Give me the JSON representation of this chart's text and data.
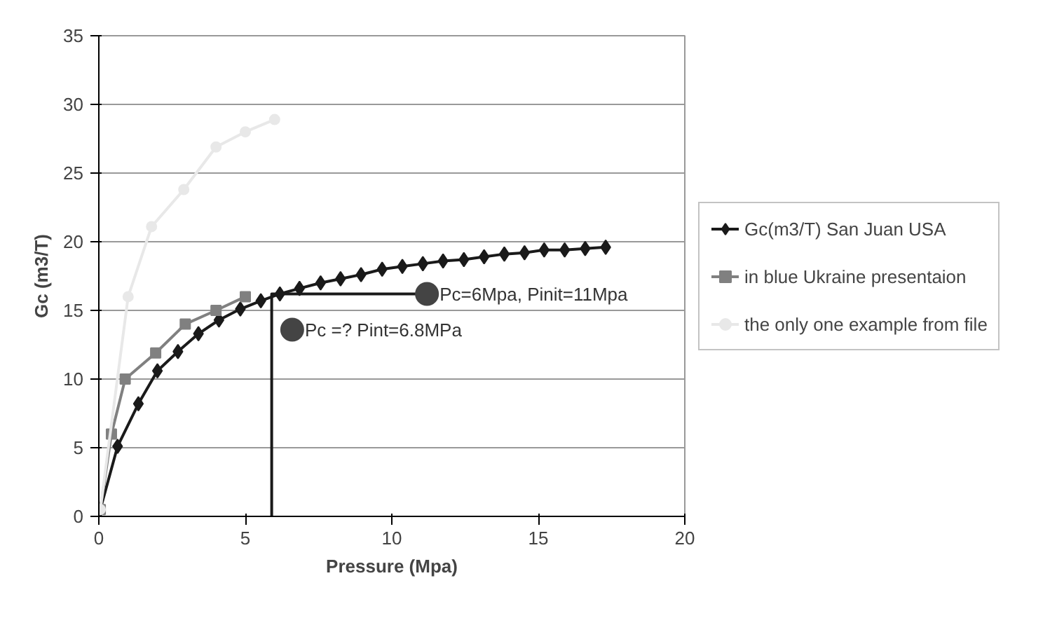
{
  "chart_data": {
    "type": "line",
    "xlabel": "Pressure (Mpa)",
    "ylabel": "Gc (m3/T)",
    "xlim": [
      0,
      20
    ],
    "xticks": [
      0,
      5,
      10,
      15,
      20
    ],
    "ylim": [
      0,
      35
    ],
    "yticks": [
      0,
      5,
      10,
      15,
      20,
      25,
      30,
      35
    ],
    "grid": "y",
    "legend": "right",
    "series": [
      {
        "name": "Gc(m3/T) San Juan USA",
        "color": "#1a1a1a",
        "marker": "diamond",
        "x": [
          0.05,
          0.64,
          1.35,
          2.0,
          2.7,
          3.4,
          4.1,
          4.83,
          5.53,
          6.18,
          6.85,
          7.57,
          8.25,
          8.95,
          9.67,
          10.36,
          11.06,
          11.75,
          12.46,
          13.15,
          13.84,
          14.53,
          15.2,
          15.9,
          16.6,
          17.3
        ],
        "values": [
          0.5,
          5.1,
          8.2,
          10.6,
          12.0,
          13.3,
          14.3,
          15.1,
          15.7,
          16.2,
          16.6,
          17.0,
          17.3,
          17.6,
          18.0,
          18.2,
          18.4,
          18.6,
          18.7,
          18.9,
          19.1,
          19.2,
          19.4,
          19.4,
          19.5,
          19.6
        ]
      },
      {
        "name": "in blue Ukraine presentaion",
        "color": "#808080",
        "marker": "square",
        "x": [
          0.05,
          0.43,
          0.9,
          1.94,
          2.95,
          4.0,
          5.0
        ],
        "values": [
          0.5,
          6.0,
          10.0,
          11.9,
          14.0,
          15.0,
          16.0
        ]
      },
      {
        "name": "the only one example from file",
        "color": "#e8e8e8",
        "marker": "circle",
        "x": [
          0.05,
          1.0,
          1.8,
          2.9,
          4.0,
          5.0,
          6.0
        ],
        "values": [
          0.5,
          16.0,
          21.1,
          23.8,
          26.9,
          28.0,
          28.9
        ]
      },
      {
        "color": "#1a1a1a",
        "marker": "none",
        "x": [
          5.9,
          5.9,
          11.2
        ],
        "values": [
          0,
          16.2,
          16.2
        ]
      },
      {
        "type": "scatter",
        "color": "#444444",
        "marker": "circle",
        "x": [
          11.2,
          6.6
        ],
        "values": [
          16.2,
          13.6
        ]
      }
    ],
    "annotations": [
      {
        "text": "Pc=6Mpa, Pinit=11Mpa",
        "x": 11.2,
        "y": 16.2
      },
      {
        "text": "Pc =? Pint=6.8MPa",
        "x": 6.6,
        "y": 13.6
      }
    ]
  }
}
